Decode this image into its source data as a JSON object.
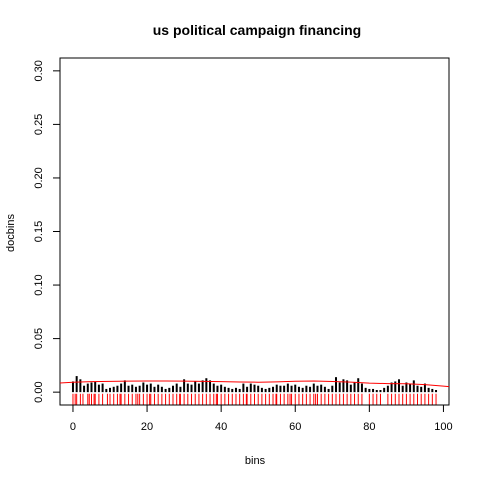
{
  "chart_data": {
    "type": "bar",
    "title": "us political campaign financing",
    "xlabel": "bins",
    "ylabel": "docbins",
    "xlim": [
      -3.5,
      101.5
    ],
    "ylim": [
      -0.012,
      0.312
    ],
    "x_ticks": [
      0,
      20,
      40,
      60,
      80,
      100
    ],
    "y_ticks": [
      0.0,
      0.05,
      0.1,
      0.15,
      0.2,
      0.25,
      0.3
    ],
    "y_tick_labels": [
      "0.00",
      "0.05",
      "0.10",
      "0.15",
      "0.20",
      "0.25",
      "0.30"
    ],
    "colors": {
      "bars": "#000000",
      "density": "#ff0000",
      "rug": "#ff0000",
      "frame": "#000000"
    },
    "bars": {
      "x": [
        0,
        1,
        2,
        3,
        4,
        5,
        6,
        7,
        8,
        9,
        10,
        11,
        12,
        13,
        14,
        15,
        16,
        17,
        18,
        19,
        20,
        21,
        22,
        23,
        24,
        25,
        26,
        27,
        28,
        29,
        30,
        31,
        32,
        33,
        34,
        35,
        36,
        37,
        38,
        39,
        40,
        41,
        42,
        43,
        44,
        45,
        46,
        47,
        48,
        49,
        50,
        51,
        52,
        53,
        54,
        55,
        56,
        57,
        58,
        59,
        60,
        61,
        62,
        63,
        64,
        65,
        66,
        67,
        68,
        69,
        70,
        71,
        72,
        73,
        74,
        75,
        76,
        77,
        78,
        79,
        80,
        81,
        82,
        83,
        84,
        85,
        86,
        87,
        88,
        89,
        90,
        91,
        92,
        93,
        94,
        95,
        96,
        97,
        98
      ],
      "y": [
        0.01,
        0.015,
        0.012,
        0.006,
        0.008,
        0.009,
        0.01,
        0.007,
        0.008,
        0.003,
        0.004,
        0.005,
        0.006,
        0.008,
        0.011,
        0.006,
        0.007,
        0.005,
        0.006,
        0.009,
        0.007,
        0.008,
        0.005,
        0.007,
        0.005,
        0.003,
        0.004,
        0.006,
        0.008,
        0.005,
        0.012,
        0.008,
        0.007,
        0.01,
        0.008,
        0.011,
        0.013,
        0.011,
        0.008,
        0.006,
        0.007,
        0.005,
        0.004,
        0.003,
        0.004,
        0.003,
        0.008,
        0.005,
        0.008,
        0.007,
        0.006,
        0.004,
        0.003,
        0.004,
        0.005,
        0.007,
        0.006,
        0.006,
        0.008,
        0.006,
        0.007,
        0.005,
        0.004,
        0.006,
        0.005,
        0.008,
        0.006,
        0.007,
        0.005,
        0.003,
        0.006,
        0.014,
        0.009,
        0.012,
        0.011,
        0.007,
        0.009,
        0.013,
        0.008,
        0.004,
        0.003,
        0.003,
        0.002,
        0.002,
        0.004,
        0.006,
        0.009,
        0.01,
        0.012,
        0.006,
        0.009,
        0.008,
        0.011,
        0.006,
        0.005,
        0.008,
        0.004,
        0.003,
        0.002
      ]
    },
    "density": {
      "x": [
        -3.5,
        0,
        5,
        10,
        15,
        20,
        25,
        30,
        35,
        40,
        45,
        50,
        55,
        60,
        65,
        70,
        75,
        80,
        85,
        90,
        95,
        100,
        101.5
      ],
      "y": [
        0.0085,
        0.0092,
        0.0098,
        0.0101,
        0.0103,
        0.0104,
        0.0104,
        0.0103,
        0.0101,
        0.0098,
        0.0095,
        0.0093,
        0.0096,
        0.0102,
        0.0104,
        0.01,
        0.0094,
        0.0084,
        0.008,
        0.0078,
        0.007,
        0.0056,
        0.0052
      ]
    },
    "rug": {
      "x": [
        0,
        0.6,
        1,
        2,
        2.7,
        4,
        4.4,
        5,
        5.7,
        6,
        7,
        8,
        9.3,
        10,
        11,
        12,
        12.7,
        13,
        14,
        15,
        16,
        17,
        17.5,
        18,
        19,
        20,
        20.7,
        21,
        22,
        23,
        24,
        25,
        26,
        27,
        28,
        28.8,
        29,
        30,
        31,
        32,
        33,
        34,
        35,
        36,
        37,
        38,
        38.7,
        39,
        40,
        41,
        42,
        43,
        44,
        45,
        46,
        46.8,
        47,
        48,
        49,
        50,
        51,
        52,
        53,
        54,
        54.8,
        55,
        56,
        57,
        58,
        58.6,
        59,
        60,
        61,
        62,
        63,
        64,
        65,
        65.5,
        66,
        67,
        68,
        69,
        70,
        71,
        72,
        73,
        74,
        75,
        76,
        77,
        78,
        80,
        81,
        82,
        83,
        85,
        86,
        87,
        88,
        89,
        90,
        91,
        92,
        93,
        94,
        95,
        96,
        97,
        98
      ]
    }
  }
}
